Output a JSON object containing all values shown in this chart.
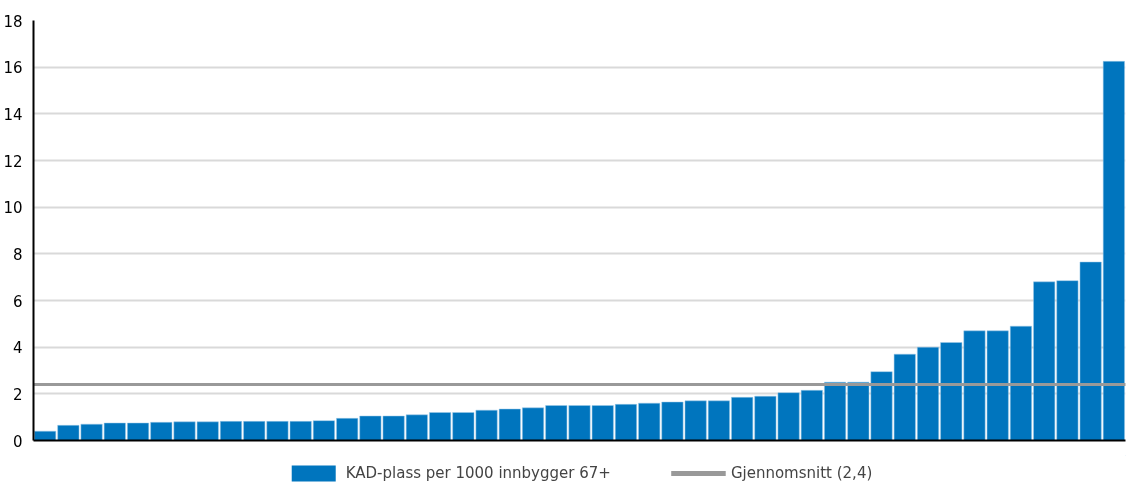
{
  "chart_data": {
    "type": "bar",
    "categories": [
      null,
      null,
      null,
      null,
      null,
      null,
      null,
      null,
      null,
      null,
      null,
      null,
      null,
      null,
      null,
      null,
      null,
      null,
      null,
      null,
      null,
      null,
      null,
      null,
      null,
      null,
      null,
      null,
      null,
      null,
      null,
      null,
      null,
      null,
      null,
      null,
      null,
      null,
      null,
      null,
      null,
      null,
      null,
      null,
      null,
      null,
      null
    ],
    "series": [
      {
        "name": "KAD-plass per 1000 innbygger 67+",
        "color": "#0075be",
        "values": [
          0.4,
          0.65,
          0.7,
          0.75,
          0.75,
          0.78,
          0.8,
          0.8,
          0.82,
          0.82,
          0.82,
          0.82,
          0.85,
          0.95,
          1.05,
          1.05,
          1.1,
          1.2,
          1.2,
          1.3,
          1.35,
          1.4,
          1.5,
          1.5,
          1.5,
          1.55,
          1.6,
          1.65,
          1.7,
          1.7,
          1.85,
          1.9,
          2.05,
          2.15,
          2.5,
          2.5,
          2.95,
          3.7,
          4.0,
          4.2,
          4.7,
          4.7,
          4.9,
          6.8,
          6.85,
          7.65,
          16.25
        ]
      }
    ],
    "ref_lines": [
      {
        "axis": "y",
        "value": 2.4,
        "label": "Gjennomsnitt (2,4)",
        "color": "#999999"
      }
    ],
    "ylim": [
      0,
      18
    ],
    "yticks": [
      0,
      2,
      4,
      6,
      8,
      10,
      12,
      14,
      16,
      18
    ],
    "grid": "y",
    "legend": "bottom"
  }
}
